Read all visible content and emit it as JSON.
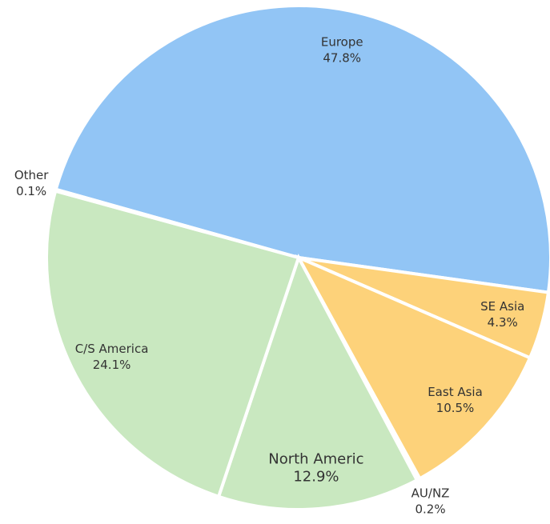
{
  "chart_data": {
    "type": "pie",
    "categories": [
      "Europe",
      "SE Asia",
      "East Asia",
      "AU/NZ",
      "North Americ",
      "C/S America",
      "Other"
    ],
    "values": [
      47.8,
      4.3,
      10.5,
      0.2,
      12.9,
      24.1,
      0.1
    ],
    "value_labels": [
      "47.8%",
      "4.3%",
      "10.5%",
      "0.2%",
      "12.9%",
      "24.1%",
      "0.1%"
    ],
    "colors": [
      "#92c5f5",
      "#fdd27a",
      "#fdd27a",
      "#fdd27a",
      "#c9e8c0",
      "#c9e8c0",
      "#c9e8c0"
    ]
  }
}
